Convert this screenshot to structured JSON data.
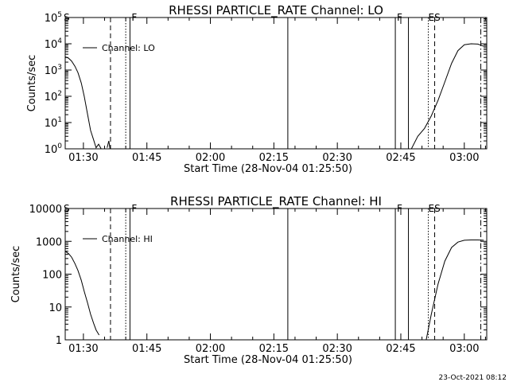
{
  "footer_date": "23-Oct-2021 08:12",
  "style": {
    "background": "#ffffff",
    "ink": "#000000"
  },
  "x_ticks": [
    {
      "t": 5.0,
      "label": "01:30"
    },
    {
      "t": 20.0,
      "label": "01:45"
    },
    {
      "t": 35.0,
      "label": "02:00"
    },
    {
      "t": 50.0,
      "label": "02:15"
    },
    {
      "t": 65.0,
      "label": "02:30"
    },
    {
      "t": 80.0,
      "label": "02:45"
    },
    {
      "t": 95.0,
      "label": "03:00"
    }
  ],
  "chart_data": [
    {
      "type": "line",
      "title": "RHESSI PARTICLE_RATE Channel: LO",
      "xlabel": "Start Time (28-Nov-04 01:25:50)",
      "ylabel": "Counts/sec",
      "x_units": "minutes after 01:25:00",
      "xlim": [
        0.7,
        100.3
      ],
      "ylim": [
        1,
        100000
      ],
      "yscale": "log",
      "yticks": [
        {
          "v": 1,
          "label": "10^0"
        },
        {
          "v": 10,
          "label": "10^1"
        },
        {
          "v": 100,
          "label": "10^2"
        },
        {
          "v": 1000,
          "label": "10^3"
        },
        {
          "v": 10000,
          "label": "10^4"
        },
        {
          "v": 100000,
          "label": "10^5"
        }
      ],
      "legend": {
        "label": "Channel: LO",
        "position": "top-left"
      },
      "series": [
        {
          "name": "Channel: LO",
          "segments": [
            [
              [
                0.7,
                3200
              ],
              [
                1.5,
                2800
              ],
              [
                2.2,
                2200
              ],
              [
                3.0,
                1400
              ],
              [
                3.7,
                800
              ],
              [
                4.5,
                320
              ],
              [
                5.2,
                100
              ],
              [
                6.0,
                20
              ],
              [
                6.7,
                5
              ],
              [
                7.4,
                2.2
              ],
              [
                8.0,
                1.1
              ],
              [
                8.6,
                1.5
              ],
              [
                9.2,
                1.0
              ]
            ],
            [
              [
                10.6,
                1.1
              ],
              [
                11.0,
                2.0
              ],
              [
                11.3,
                1.0
              ]
            ],
            [
              [
                82.5,
                1.0
              ],
              [
                84.0,
                3
              ],
              [
                85.6,
                6
              ],
              [
                87.2,
                18
              ],
              [
                88.8,
                70
              ],
              [
                90.4,
                350
              ],
              [
                92.0,
                1800
              ],
              [
                93.5,
                5500
              ],
              [
                95.0,
                9200
              ],
              [
                96.6,
                10000
              ],
              [
                98.2,
                9700
              ],
              [
                99.6,
                8000
              ]
            ]
          ]
        }
      ],
      "markers": [
        {
          "t": 11.4,
          "style": "dashed",
          "label": ""
        },
        {
          "t": 15.0,
          "style": "dotted",
          "label": ""
        },
        {
          "t": 16.0,
          "style": "solid",
          "label": "F"
        },
        {
          "t": 53.3,
          "style": "solid",
          "label": ""
        },
        {
          "t": 78.7,
          "style": "solid",
          "label": "F"
        },
        {
          "t": 81.8,
          "style": "solid",
          "label": ""
        },
        {
          "t": 86.5,
          "style": "dotted",
          "label": ""
        },
        {
          "t": 88.0,
          "style": "dashed",
          "label": "ES"
        },
        {
          "t": 98.9,
          "style": "dashdot",
          "label": ""
        }
      ],
      "corner_label": "S"
    },
    {
      "type": "line",
      "title": "RHESSI PARTICLE_RATE Channel: HI",
      "xlabel": "Start Time (28-Nov-04 01:25:50)",
      "ylabel": "Counts/sec",
      "x_units": "minutes after 01:25:00",
      "xlim": [
        0.7,
        100.3
      ],
      "ylim": [
        1,
        10000
      ],
      "yscale": "log",
      "yticks": [
        {
          "v": 1,
          "label": "1"
        },
        {
          "v": 10,
          "label": "10"
        },
        {
          "v": 100,
          "label": "100"
        },
        {
          "v": 1000,
          "label": "1000"
        },
        {
          "v": 10000,
          "label": "10000"
        }
      ],
      "legend": {
        "label": "Channel: HI",
        "position": "top-left"
      },
      "series": [
        {
          "name": "Channel: HI",
          "segments": [
            [
              [
                0.7,
                500
              ],
              [
                1.5,
                420
              ],
              [
                2.2,
                330
              ],
              [
                3.0,
                210
              ],
              [
                3.7,
                130
              ],
              [
                4.5,
                65
              ],
              [
                5.2,
                30
              ],
              [
                6.0,
                13
              ],
              [
                6.7,
                6
              ],
              [
                7.4,
                3.2
              ],
              [
                8.0,
                2.0
              ],
              [
                8.7,
                1.4
              ]
            ],
            [
              [
                86.0,
                1.0
              ],
              [
                87.2,
                6
              ],
              [
                88.8,
                50
              ],
              [
                90.4,
                250
              ],
              [
                92.0,
                650
              ],
              [
                93.5,
                950
              ],
              [
                95.0,
                1080
              ],
              [
                96.6,
                1100
              ],
              [
                98.2,
                1100
              ],
              [
                99.6,
                1080
              ]
            ]
          ]
        }
      ],
      "markers": [
        {
          "t": 11.4,
          "style": "dashed",
          "label": ""
        },
        {
          "t": 15.0,
          "style": "dotted",
          "label": ""
        },
        {
          "t": 16.0,
          "style": "solid",
          "label": "F"
        },
        {
          "t": 53.3,
          "style": "solid",
          "label": ""
        },
        {
          "t": 78.7,
          "style": "solid",
          "label": "F"
        },
        {
          "t": 81.8,
          "style": "solid",
          "label": ""
        },
        {
          "t": 86.5,
          "style": "dotted",
          "label": ""
        },
        {
          "t": 88.0,
          "style": "dashed",
          "label": "ES"
        },
        {
          "t": 98.9,
          "style": "dashdot",
          "label": ""
        }
      ],
      "corner_label": "S"
    }
  ]
}
